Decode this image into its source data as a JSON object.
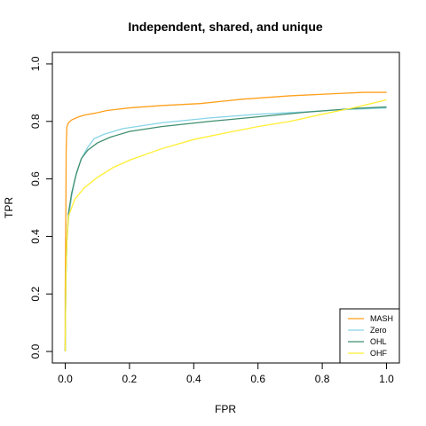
{
  "chart_data": {
    "type": "line",
    "title": "Independent, shared, and unique",
    "xlabel": "FPR",
    "ylabel": "TPR",
    "xlim": [
      -0.04,
      1.04
    ],
    "ylim": [
      -0.04,
      1.04
    ],
    "x_ticks": [
      0.0,
      0.2,
      0.4,
      0.6,
      0.8,
      1.0
    ],
    "y_ticks": [
      0.0,
      0.2,
      0.4,
      0.6,
      0.8,
      1.0
    ],
    "x_tick_labels": [
      "0.0",
      "0.2",
      "0.4",
      "0.6",
      "0.8",
      "1.0"
    ],
    "y_tick_labels": [
      "0.0",
      "0.2",
      "0.4",
      "0.6",
      "0.8",
      "1.0"
    ],
    "grid": false,
    "legend_position": "bottom-right",
    "series": [
      {
        "name": "MASH",
        "color": "#ff9f1a",
        "points": [
          [
            0.0,
            0.0
          ],
          [
            0.0,
            0.2
          ],
          [
            0.002,
            0.5
          ],
          [
            0.003,
            0.7
          ],
          [
            0.005,
            0.78
          ],
          [
            0.01,
            0.795
          ],
          [
            0.02,
            0.805
          ],
          [
            0.04,
            0.815
          ],
          [
            0.06,
            0.822
          ],
          [
            0.09,
            0.828
          ],
          [
            0.13,
            0.838
          ],
          [
            0.2,
            0.847
          ],
          [
            0.3,
            0.855
          ],
          [
            0.42,
            0.862
          ],
          [
            0.55,
            0.877
          ],
          [
            0.7,
            0.889
          ],
          [
            0.85,
            0.897
          ],
          [
            0.93,
            0.901
          ],
          [
            1.0,
            0.901
          ]
        ]
      },
      {
        "name": "Zero",
        "color": "#87d4e8",
        "points": [
          [
            0.0,
            0.0
          ],
          [
            0.002,
            0.25
          ],
          [
            0.005,
            0.38
          ],
          [
            0.01,
            0.46
          ],
          [
            0.02,
            0.54
          ],
          [
            0.03,
            0.6
          ],
          [
            0.05,
            0.67
          ],
          [
            0.07,
            0.71
          ],
          [
            0.09,
            0.74
          ],
          [
            0.12,
            0.755
          ],
          [
            0.18,
            0.775
          ],
          [
            0.3,
            0.795
          ],
          [
            0.45,
            0.812
          ],
          [
            0.6,
            0.825
          ],
          [
            0.75,
            0.833
          ],
          [
            0.85,
            0.84
          ],
          [
            1.0,
            0.847
          ]
        ]
      },
      {
        "name": "OHL",
        "color": "#3f8f6f",
        "points": [
          [
            0.0,
            0.0
          ],
          [
            0.002,
            0.25
          ],
          [
            0.005,
            0.38
          ],
          [
            0.01,
            0.48
          ],
          [
            0.02,
            0.55
          ],
          [
            0.035,
            0.62
          ],
          [
            0.05,
            0.67
          ],
          [
            0.07,
            0.7
          ],
          [
            0.1,
            0.725
          ],
          [
            0.14,
            0.745
          ],
          [
            0.2,
            0.765
          ],
          [
            0.3,
            0.782
          ],
          [
            0.45,
            0.8
          ],
          [
            0.6,
            0.816
          ],
          [
            0.75,
            0.832
          ],
          [
            0.9,
            0.845
          ],
          [
            1.0,
            0.85
          ]
        ]
      },
      {
        "name": "OHF",
        "color": "#ffee33",
        "points": [
          [
            0.0,
            0.0
          ],
          [
            0.002,
            0.25
          ],
          [
            0.005,
            0.38
          ],
          [
            0.01,
            0.47
          ],
          [
            0.03,
            0.53
          ],
          [
            0.06,
            0.57
          ],
          [
            0.1,
            0.605
          ],
          [
            0.15,
            0.64
          ],
          [
            0.2,
            0.665
          ],
          [
            0.3,
            0.705
          ],
          [
            0.4,
            0.737
          ],
          [
            0.5,
            0.76
          ],
          [
            0.6,
            0.782
          ],
          [
            0.7,
            0.8
          ],
          [
            0.8,
            0.825
          ],
          [
            0.9,
            0.848
          ],
          [
            1.0,
            0.875
          ]
        ]
      }
    ]
  }
}
